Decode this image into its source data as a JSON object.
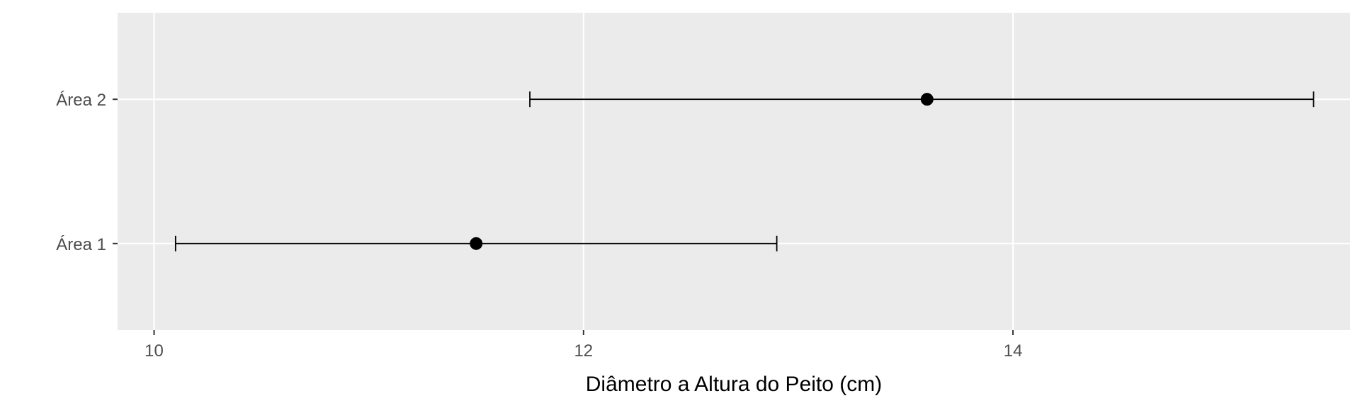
{
  "chart_data": {
    "type": "scatter",
    "orientation": "horizontal",
    "title": "",
    "xlabel": "Diâmetro a Altura do Peito (cm)",
    "ylabel": "",
    "xlim": [
      9.83,
      15.57
    ],
    "x_ticks": [
      10,
      12,
      14
    ],
    "x_tick_labels": [
      "10",
      "12",
      "14"
    ],
    "categories": [
      "Área 1",
      "Área 2"
    ],
    "series": [
      {
        "points": [
          {
            "category": "Área 1",
            "x": 11.5,
            "lower": 10.1,
            "upper": 12.9
          },
          {
            "category": "Área 2",
            "x": 13.6,
            "lower": 11.75,
            "upper": 15.4
          }
        ]
      }
    ],
    "grid": true,
    "legend": "none",
    "colors": {
      "panel_background": "#ebebeb",
      "grid": "#ffffff",
      "points": "#000000"
    }
  }
}
